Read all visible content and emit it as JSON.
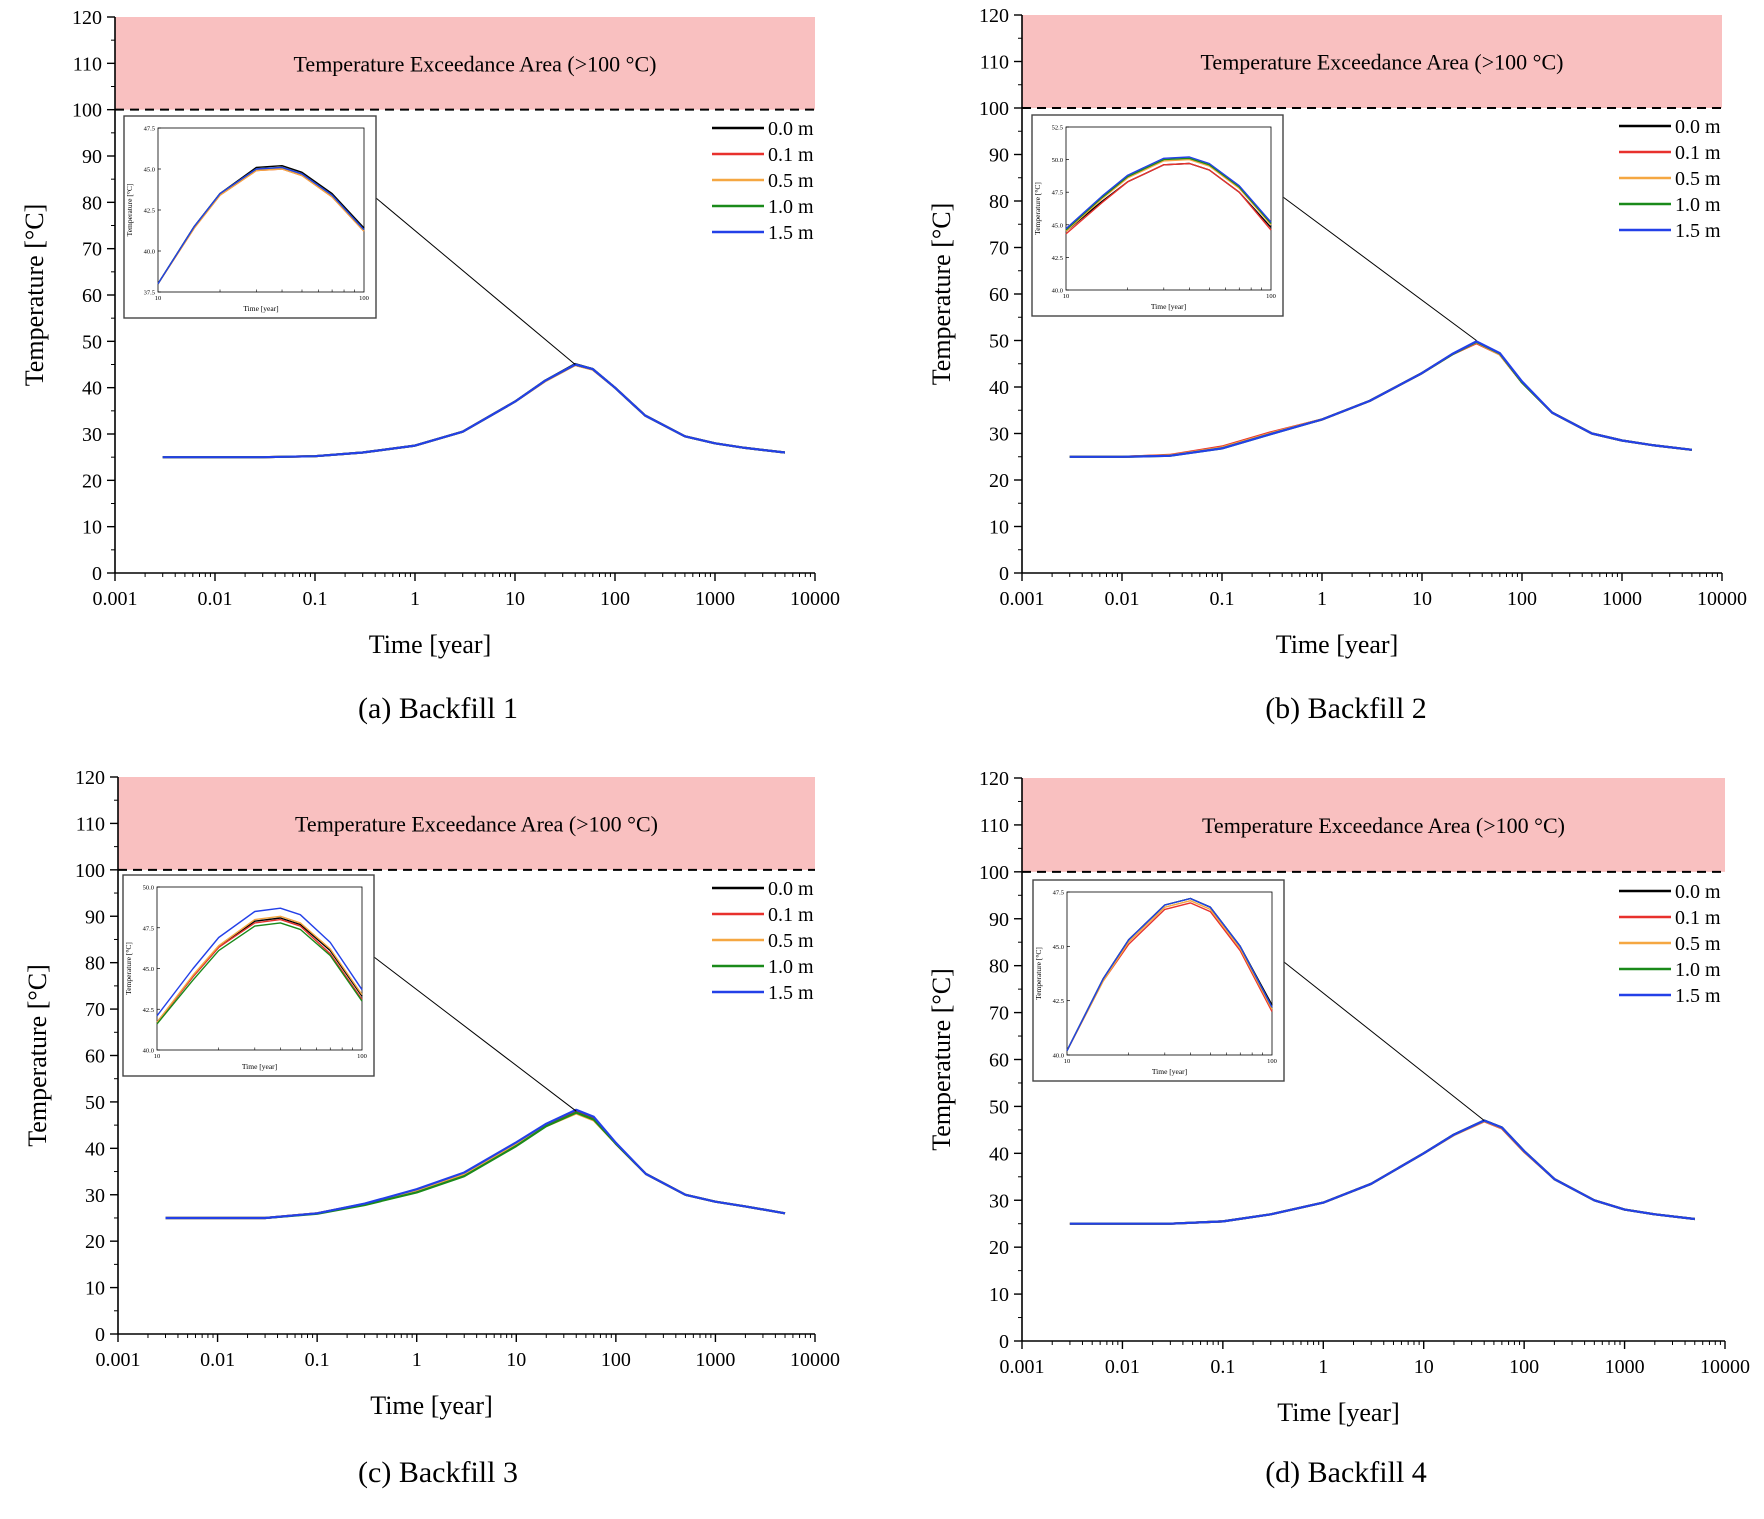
{
  "chart_data": [
    {
      "type": "line",
      "caption": "(a) Backfill 1",
      "xlabel": "Time [year]",
      "ylabel": "Temperature [°C]",
      "xscale": "log",
      "xlim": [
        0.001,
        10000
      ],
      "ylim": [
        0,
        120
      ],
      "xticks": [
        "0.001",
        "0.01",
        "0.1",
        "1",
        "10",
        "100",
        "1000",
        "10000"
      ],
      "yticks": [
        "0",
        "10",
        "20",
        "30",
        "40",
        "50",
        "60",
        "70",
        "80",
        "90",
        "100",
        "110",
        "120"
      ],
      "exceedance_label": "Temperature Exceedance Area (>100 °C)",
      "threshold": 100,
      "legend_position": "right, below threshold line",
      "x": [
        0.003,
        0.01,
        0.03,
        0.1,
        0.3,
        1,
        3,
        10,
        20,
        40,
        60,
        100,
        200,
        500,
        1000,
        2000,
        5000
      ],
      "series": [
        {
          "name": "0.0 m",
          "color": "#000000",
          "values": [
            25,
            25,
            25,
            25.2,
            26,
            27.5,
            30.5,
            37,
            41.5,
            45.1,
            44,
            40,
            34,
            29.5,
            28,
            27,
            26
          ]
        },
        {
          "name": "0.1 m",
          "color": "#e8312d",
          "values": [
            25,
            25,
            25,
            25.2,
            26,
            27.5,
            30.5,
            37,
            41.4,
            44.9,
            43.9,
            40,
            34,
            29.5,
            28,
            27,
            26
          ]
        },
        {
          "name": "0.5 m",
          "color": "#f5a742",
          "values": [
            25,
            25,
            25,
            25.2,
            26,
            27.5,
            30.5,
            37,
            41.4,
            44.9,
            43.9,
            40,
            34,
            29.5,
            28,
            27,
            26
          ]
        },
        {
          "name": "1.0 m",
          "color": "#1a8a1a",
          "values": [
            25,
            25,
            25,
            25.2,
            26,
            27.5,
            30.5,
            37,
            41.5,
            45,
            44,
            40,
            34,
            29.5,
            28,
            27,
            26
          ]
        },
        {
          "name": "1.5 m",
          "color": "#2340e8",
          "values": [
            25,
            25,
            25,
            25.2,
            26,
            27.5,
            30.5,
            37,
            41.5,
            45,
            44,
            40,
            34,
            29.5,
            28,
            27,
            26
          ]
        }
      ],
      "inset": {
        "xlim": [
          10,
          100
        ],
        "ylim": [
          37.5,
          47.5
        ],
        "xticks": [
          "10",
          "100"
        ],
        "yticks": [
          "37.5",
          "40.0",
          "42.5",
          "45.0",
          "47.5"
        ],
        "xlabel": "Time [year]",
        "ylabel": "Temperature [°C]",
        "x": [
          10,
          15,
          20,
          30,
          40,
          50,
          70,
          100
        ],
        "series": [
          {
            "name": "0.0 m",
            "values": [
              38,
              41.5,
              43.5,
              45.1,
              45.2,
              44.8,
              43.5,
              41.4
            ]
          },
          {
            "name": "0.1 m",
            "values": [
              38,
              41.4,
              43.4,
              44.9,
              45.0,
              44.6,
              43.3,
              41.2
            ]
          },
          {
            "name": "0.5 m",
            "values": [
              38,
              41.4,
              43.4,
              44.9,
              45.0,
              44.6,
              43.3,
              41.2
            ]
          },
          {
            "name": "1.0 m",
            "values": [
              38,
              41.5,
              43.5,
              45.0,
              45.1,
              44.7,
              43.4,
              41.3
            ]
          },
          {
            "name": "1.5 m",
            "values": [
              38,
              41.5,
              43.5,
              45.0,
              45.1,
              44.7,
              43.4,
              41.3
            ]
          }
        ]
      }
    },
    {
      "type": "line",
      "caption": "(b) Backfill 2",
      "xlabel": "Time [year]",
      "ylabel": "Temperature [°C]",
      "xscale": "log",
      "xlim": [
        0.001,
        10000
      ],
      "ylim": [
        0,
        120
      ],
      "xticks": [
        "0.001",
        "0.01",
        "0.1",
        "1",
        "10",
        "100",
        "1000",
        "10000"
      ],
      "yticks": [
        "0",
        "10",
        "20",
        "30",
        "40",
        "50",
        "60",
        "70",
        "80",
        "90",
        "100",
        "110",
        "120"
      ],
      "exceedance_label": "Temperature Exceedance Area (>100 °C)",
      "threshold": 100,
      "legend_position": "right, below threshold line",
      "x": [
        0.003,
        0.01,
        0.03,
        0.1,
        0.3,
        1,
        3,
        10,
        20,
        35,
        60,
        100,
        200,
        500,
        1000,
        2000,
        5000
      ],
      "series": [
        {
          "name": "0.0 m",
          "color": "#000000",
          "values": [
            25,
            25,
            25.3,
            27,
            30,
            33,
            37,
            43,
            47,
            49.5,
            47,
            41,
            34.5,
            30,
            28.5,
            27.5,
            26.5
          ]
        },
        {
          "name": "0.1 m",
          "color": "#e8312d",
          "values": [
            25,
            25,
            25.4,
            27.2,
            30.2,
            33,
            37,
            43,
            47,
            49.4,
            47,
            41,
            34.5,
            30,
            28.5,
            27.5,
            26.5
          ]
        },
        {
          "name": "0.5 m",
          "color": "#f5a742",
          "values": [
            25,
            25,
            25.3,
            27,
            30,
            33,
            37,
            43,
            47,
            49.6,
            47,
            41,
            34.5,
            30,
            28.5,
            27.5,
            26.5
          ]
        },
        {
          "name": "1.0 m",
          "color": "#1a8a1a",
          "values": [
            25,
            25,
            25.2,
            26.8,
            29.8,
            33,
            37,
            43,
            47,
            49.7,
            47.2,
            41,
            34.5,
            30,
            28.5,
            27.5,
            26.5
          ]
        },
        {
          "name": "1.5 m",
          "color": "#2340e8",
          "values": [
            25,
            25,
            25.2,
            26.8,
            29.8,
            33,
            37,
            43,
            47.1,
            49.8,
            47.3,
            41.2,
            34.5,
            30,
            28.5,
            27.5,
            26.5
          ]
        }
      ],
      "inset": {
        "xlim": [
          10,
          100
        ],
        "ylim": [
          40.0,
          52.5
        ],
        "xticks": [
          "10",
          "100"
        ],
        "yticks": [
          "40.0",
          "42.5",
          "45.0",
          "47.5",
          "50.0",
          "52.5"
        ],
        "xlabel": "Time [year]",
        "ylabel": "Temperature [°C]",
        "x": [
          10,
          15,
          20,
          30,
          40,
          50,
          70,
          100
        ],
        "series": [
          {
            "name": "0.0 m",
            "values": [
              44.5,
              46.8,
              48.3,
              49.6,
              49.7,
              49.2,
              47.5,
              44.8
            ]
          },
          {
            "name": "0.1 m",
            "values": [
              44.3,
              46.7,
              48.3,
              49.6,
              49.7,
              49.2,
              47.5,
              44.6
            ]
          },
          {
            "name": "0.5 m",
            "values": [
              44.5,
              47.0,
              48.6,
              49.9,
              50.0,
              49.5,
              47.8,
              45.0
            ]
          },
          {
            "name": "1.0 m",
            "values": [
              44.6,
              47.1,
              48.7,
              50.0,
              50.1,
              49.6,
              47.9,
              45.1
            ]
          },
          {
            "name": "1.5 m",
            "values": [
              44.7,
              47.2,
              48.8,
              50.1,
              50.2,
              49.7,
              48.0,
              45.2
            ]
          }
        ]
      }
    },
    {
      "type": "line",
      "caption": "(c) Backfill 3",
      "xlabel": "Time [year]",
      "ylabel": "Temperature [°C]",
      "xscale": "log",
      "xlim": [
        0.001,
        10000
      ],
      "ylim": [
        0,
        120
      ],
      "xticks": [
        "0.001",
        "0.01",
        "0.1",
        "1",
        "10",
        "100",
        "1000",
        "10000"
      ],
      "yticks": [
        "0",
        "10",
        "20",
        "30",
        "40",
        "50",
        "60",
        "70",
        "80",
        "90",
        "100",
        "110",
        "120"
      ],
      "exceedance_label": "Temperature Exceedance Area (>100 °C)",
      "threshold": 100,
      "legend_position": "right, below threshold line",
      "x": [
        0.003,
        0.01,
        0.03,
        0.1,
        0.3,
        1,
        3,
        10,
        20,
        40,
        60,
        100,
        200,
        500,
        1000,
        2000,
        5000
      ],
      "series": [
        {
          "name": "0.0 m",
          "color": "#000000",
          "values": [
            25,
            25,
            25,
            26,
            28,
            31,
            34.5,
            41,
            45,
            48,
            46.5,
            41,
            34.5,
            30,
            28.5,
            27.5,
            26
          ]
        },
        {
          "name": "0.1 m",
          "color": "#e8312d",
          "values": [
            25,
            25,
            25,
            26,
            28,
            31,
            34.5,
            41,
            45,
            47.8,
            46.3,
            41,
            34.5,
            30,
            28.5,
            27.5,
            26
          ]
        },
        {
          "name": "0.5 m",
          "color": "#f5a742",
          "values": [
            25,
            25,
            25,
            26,
            28,
            31,
            34.5,
            41,
            44.8,
            47.5,
            46,
            41,
            34.5,
            30,
            28.5,
            27.5,
            26
          ]
        },
        {
          "name": "1.0 m",
          "color": "#1a8a1a",
          "values": [
            25,
            25,
            25,
            25.9,
            27.8,
            30.5,
            34,
            40.5,
            44.8,
            47.7,
            46.2,
            41,
            34.5,
            30,
            28.5,
            27.5,
            26
          ]
        },
        {
          "name": "1.5 m",
          "color": "#2340e8",
          "values": [
            25,
            25,
            25,
            26,
            28.1,
            31.2,
            34.8,
            41.3,
            45.3,
            48.3,
            46.8,
            41.2,
            34.5,
            30,
            28.5,
            27.5,
            26
          ]
        }
      ],
      "inset": {
        "xlim": [
          10,
          100
        ],
        "ylim": [
          40.0,
          50.0
        ],
        "xticks": [
          "10",
          "100"
        ],
        "yticks": [
          "40.0",
          "42.5",
          "45.0",
          "47.5",
          "50.0"
        ],
        "xlabel": "Time [year]",
        "ylabel": "Temperature [°C]",
        "x": [
          10,
          15,
          20,
          30,
          40,
          50,
          70,
          100
        ],
        "series": [
          {
            "name": "0.0 m",
            "values": [
              41.7,
              44.5,
              46.3,
              47.9,
              48.1,
              47.7,
              46.1,
              43.3
            ]
          },
          {
            "name": "0.1 m",
            "values": [
              41.7,
              44.5,
              46.3,
              47.8,
              48.0,
              47.6,
              45.9,
              43.1
            ]
          },
          {
            "name": "0.5 m",
            "values": [
              41.7,
              44.6,
              46.4,
              48.0,
              48.2,
              47.8,
              46.2,
              43.4
            ]
          },
          {
            "name": "1.0 m",
            "values": [
              41.6,
              44.3,
              46.1,
              47.6,
              47.8,
              47.4,
              45.8,
              43.0
            ]
          },
          {
            "name": "1.5 m",
            "values": [
              42.1,
              45.0,
              46.9,
              48.5,
              48.7,
              48.3,
              46.6,
              43.7
            ]
          }
        ]
      }
    },
    {
      "type": "line",
      "caption": "(d) Backfill 4",
      "xlabel": "Time [year]",
      "ylabel": "Temperature [°C]",
      "xscale": "log",
      "xlim": [
        0.001,
        10000
      ],
      "ylim": [
        0,
        120
      ],
      "xticks": [
        "0.001",
        "0.01",
        "0.1",
        "1",
        "10",
        "100",
        "1000",
        "10000"
      ],
      "yticks": [
        "0",
        "10",
        "20",
        "30",
        "40",
        "50",
        "60",
        "70",
        "80",
        "90",
        "100",
        "110",
        "120"
      ],
      "exceedance_label": "Temperature Exceedance Area (>100 °C)",
      "threshold": 100,
      "legend_position": "right, below threshold line",
      "x": [
        0.003,
        0.01,
        0.03,
        0.1,
        0.3,
        1,
        3,
        10,
        20,
        40,
        60,
        100,
        200,
        500,
        1000,
        2000,
        5000
      ],
      "series": [
        {
          "name": "0.0 m",
          "color": "#000000",
          "values": [
            25,
            25,
            25,
            25.5,
            27,
            29.5,
            33.5,
            40,
            44,
            47,
            45.5,
            40.5,
            34.5,
            30,
            28,
            27,
            26
          ]
        },
        {
          "name": "0.1 m",
          "color": "#e8312d",
          "values": [
            25,
            25,
            25,
            25.5,
            27,
            29.5,
            33.5,
            40,
            43.9,
            46.8,
            45.3,
            40.3,
            34.5,
            30,
            28,
            27,
            26
          ]
        },
        {
          "name": "0.5 m",
          "color": "#f5a742",
          "values": [
            25,
            25,
            25,
            25.5,
            27,
            29.5,
            33.5,
            40,
            43.9,
            46.9,
            45.4,
            40.4,
            34.5,
            30,
            28,
            27,
            26
          ]
        },
        {
          "name": "1.0 m",
          "color": "#1a8a1a",
          "values": [
            25,
            25,
            25,
            25.5,
            27,
            29.5,
            33.5,
            40,
            44,
            47,
            45.5,
            40.5,
            34.5,
            30,
            28,
            27,
            26
          ]
        },
        {
          "name": "1.5 m",
          "color": "#2340e8",
          "values": [
            25,
            25,
            25,
            25.5,
            27,
            29.5,
            33.5,
            40,
            44,
            47,
            45.5,
            40.5,
            34.5,
            30,
            28,
            27,
            26
          ]
        }
      ],
      "inset": {
        "xlim": [
          10,
          100
        ],
        "ylim": [
          40.0,
          47.5
        ],
        "xticks": [
          "10",
          "100"
        ],
        "yticks": [
          "40.0",
          "42.5",
          "45.0",
          "47.5"
        ],
        "xlabel": "Time [year]",
        "ylabel": "Temperature [°C]",
        "x": [
          10,
          15,
          20,
          30,
          40,
          50,
          70,
          100
        ],
        "series": [
          {
            "name": "0.0 m",
            "values": [
              40.2,
              43.5,
              45.3,
              46.9,
              47.2,
              46.8,
              45.0,
              42.3
            ]
          },
          {
            "name": "0.1 m",
            "values": [
              40.2,
              43.4,
              45.1,
              46.7,
              47.0,
              46.6,
              44.8,
              42.0
            ]
          },
          {
            "name": "0.5 m",
            "values": [
              40.2,
              43.4,
              45.2,
              46.8,
              47.1,
              46.7,
              44.9,
              42.1
            ]
          },
          {
            "name": "1.0 m",
            "values": [
              40.2,
              43.5,
              45.3,
              46.9,
              47.2,
              46.8,
              45.0,
              42.2
            ]
          },
          {
            "name": "1.5 m",
            "values": [
              40.2,
              43.5,
              45.3,
              46.9,
              47.2,
              46.8,
              45.0,
              42.2
            ]
          }
        ]
      }
    }
  ]
}
